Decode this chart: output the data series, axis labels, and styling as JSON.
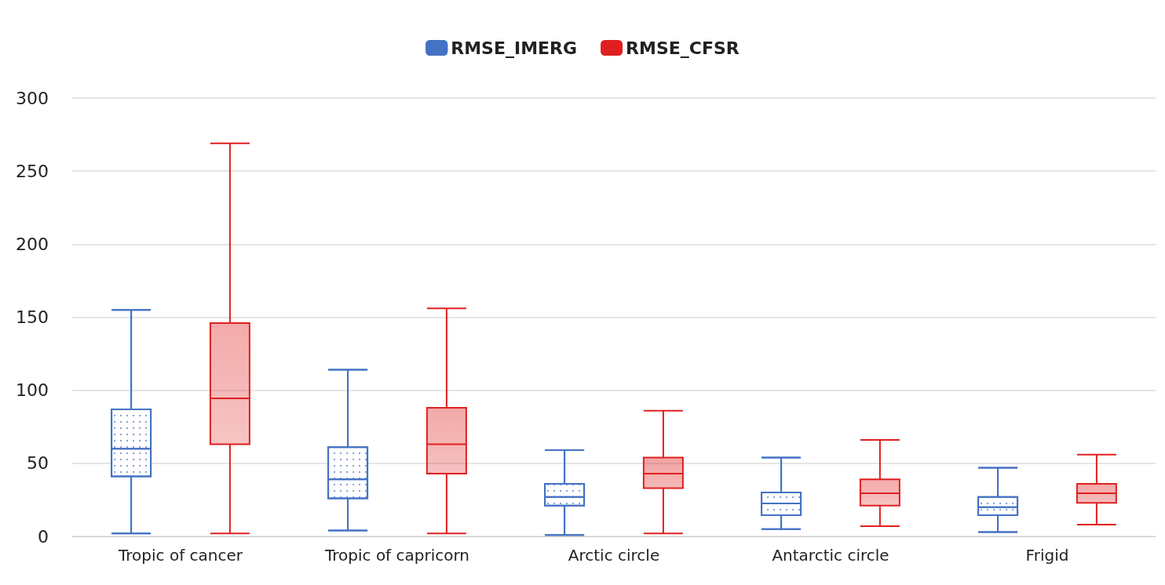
{
  "chart_data": {
    "type": "box",
    "categories": [
      "Tropic of cancer",
      "Tropic of capricorn",
      "Arctic circle",
      "Antarctic circle",
      "Frigid"
    ],
    "series": [
      {
        "name": "RMSE_IMERG",
        "color": "#4472c4",
        "boxes": [
          {
            "low": 2,
            "q1": 41,
            "median": 60,
            "q3": 87,
            "high": 155
          },
          {
            "low": 4,
            "q1": 26,
            "median": 39,
            "q3": 61,
            "high": 114
          },
          {
            "low": 1,
            "q1": 21,
            "median": 27,
            "q3": 36,
            "high": 59
          },
          {
            "low": 5,
            "q1": 14.5,
            "median": 22.5,
            "q3": 30,
            "high": 54
          },
          {
            "low": 3,
            "q1": 14.5,
            "median": 20,
            "q3": 27,
            "high": 47
          }
        ]
      },
      {
        "name": "RMSE_CFSR",
        "color": "#e02020",
        "boxes": [
          {
            "low": 2,
            "q1": 63,
            "median": 94.5,
            "q3": 146,
            "high": 269
          },
          {
            "low": 2,
            "q1": 43,
            "median": 63,
            "q3": 88,
            "high": 156
          },
          {
            "low": 2,
            "q1": 33,
            "median": 43,
            "q3": 54,
            "high": 86
          },
          {
            "low": 7,
            "q1": 21,
            "median": 29.5,
            "q3": 39,
            "high": 66
          },
          {
            "low": 8,
            "q1": 23,
            "median": 29.5,
            "q3": 36,
            "high": 56
          }
        ]
      }
    ],
    "ylim": [
      0,
      300
    ],
    "yticks": [
      0,
      50,
      100,
      150,
      200,
      250,
      300
    ],
    "grid": "y",
    "legend": "top"
  }
}
